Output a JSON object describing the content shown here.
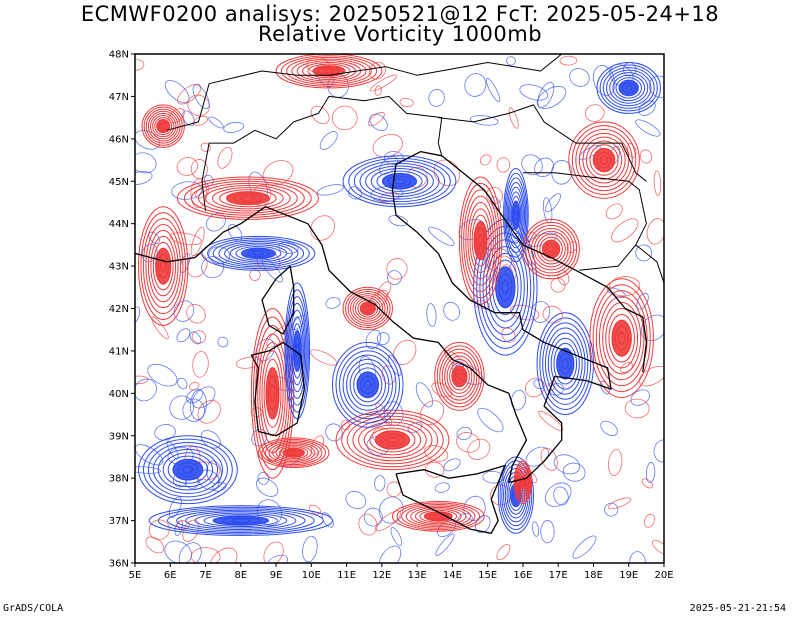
{
  "title_line1": "ECMWF0200 analisys: 20250521@12 FcT: 2025-05-24+18",
  "title_line2": "Relative Vorticity 1000mb",
  "footer_left": "GrADS/COLA",
  "footer_right": "2025-05-21-21:54",
  "colors": {
    "positive": "#f03b3b",
    "negative": "#2f4ef0",
    "coastline": "#000000",
    "frame": "#000000"
  },
  "map": {
    "lon_range": [
      5,
      20
    ],
    "lat_range": [
      36,
      48
    ],
    "lon_ticks": [
      "5E",
      "6E",
      "7E",
      "8E",
      "9E",
      "10E",
      "11E",
      "12E",
      "13E",
      "14E",
      "15E",
      "16E",
      "17E",
      "18E",
      "19E",
      "20E"
    ],
    "lat_ticks": [
      "36N",
      "37N",
      "38N",
      "39N",
      "40N",
      "41N",
      "42N",
      "43N",
      "44N",
      "45N",
      "46N",
      "47N",
      "48N"
    ],
    "fields": [
      {
        "sign": "positive",
        "lon": 5.8,
        "lat": 43.0,
        "r_lon": 0.7,
        "r_lat": 1.4
      },
      {
        "sign": "positive",
        "lon": 8.9,
        "lat": 40.0,
        "r_lon": 0.6,
        "r_lat": 2.0
      },
      {
        "sign": "negative",
        "lon": 9.6,
        "lat": 41.0,
        "r_lon": 0.35,
        "r_lat": 1.6
      },
      {
        "sign": "positive",
        "lon": 9.5,
        "lat": 38.6,
        "r_lon": 1.0,
        "r_lat": 0.35
      },
      {
        "sign": "positive",
        "lon": 12.3,
        "lat": 38.9,
        "r_lon": 1.6,
        "r_lat": 0.7
      },
      {
        "sign": "positive",
        "lon": 14.2,
        "lat": 40.4,
        "r_lon": 0.7,
        "r_lat": 0.8
      },
      {
        "sign": "positive",
        "lon": 11.6,
        "lat": 42.0,
        "r_lon": 0.7,
        "r_lat": 0.5
      },
      {
        "sign": "negative",
        "lon": 15.5,
        "lat": 42.5,
        "r_lon": 0.9,
        "r_lat": 1.6
      },
      {
        "sign": "positive",
        "lon": 14.8,
        "lat": 43.6,
        "r_lon": 0.6,
        "r_lat": 1.5
      },
      {
        "sign": "negative",
        "lon": 15.8,
        "lat": 44.2,
        "r_lon": 0.35,
        "r_lat": 1.1
      },
      {
        "sign": "positive",
        "lon": 16.8,
        "lat": 43.4,
        "r_lon": 0.8,
        "r_lat": 0.7
      },
      {
        "sign": "negative",
        "lon": 17.2,
        "lat": 40.7,
        "r_lon": 0.8,
        "r_lat": 1.2
      },
      {
        "sign": "positive",
        "lon": 18.8,
        "lat": 41.3,
        "r_lon": 0.9,
        "r_lat": 1.4
      },
      {
        "sign": "negative",
        "lon": 15.8,
        "lat": 37.6,
        "r_lon": 0.5,
        "r_lat": 0.9
      },
      {
        "sign": "positive",
        "lon": 16.0,
        "lat": 37.9,
        "r_lon": 0.25,
        "r_lat": 0.5
      },
      {
        "sign": "positive",
        "lon": 13.6,
        "lat": 37.1,
        "r_lon": 1.3,
        "r_lat": 0.35
      },
      {
        "sign": "negative",
        "lon": 8.0,
        "lat": 37.0,
        "r_lon": 2.6,
        "r_lat": 0.35
      },
      {
        "sign": "negative",
        "lon": 12.5,
        "lat": 45.0,
        "r_lon": 1.6,
        "r_lat": 0.6
      },
      {
        "sign": "positive",
        "lon": 8.2,
        "lat": 44.6,
        "r_lon": 2.0,
        "r_lat": 0.5
      },
      {
        "sign": "negative",
        "lon": 8.5,
        "lat": 43.3,
        "r_lon": 1.6,
        "r_lat": 0.4
      },
      {
        "sign": "positive",
        "lon": 10.5,
        "lat": 47.6,
        "r_lon": 1.5,
        "r_lat": 0.4
      },
      {
        "sign": "negative",
        "lon": 19.0,
        "lat": 47.2,
        "r_lon": 0.9,
        "r_lat": 0.6
      },
      {
        "sign": "positive",
        "lon": 18.3,
        "lat": 45.5,
        "r_lon": 1.0,
        "r_lat": 0.9
      },
      {
        "sign": "positive",
        "lon": 5.8,
        "lat": 46.3,
        "r_lon": 0.6,
        "r_lat": 0.5
      },
      {
        "sign": "negative",
        "lon": 11.6,
        "lat": 40.2,
        "r_lon": 1.0,
        "r_lat": 1.0
      },
      {
        "sign": "negative",
        "lon": 6.5,
        "lat": 38.2,
        "r_lon": 1.4,
        "r_lat": 0.8
      }
    ],
    "coastlines": [
      [
        [
          7.5,
          43.8
        ],
        [
          8.0,
          44.0
        ],
        [
          8.7,
          44.4
        ],
        [
          9.3,
          44.2
        ],
        [
          9.9,
          44.0
        ],
        [
          10.3,
          43.5
        ],
        [
          10.5,
          42.9
        ],
        [
          11.1,
          42.4
        ],
        [
          11.8,
          42.1
        ],
        [
          12.3,
          41.7
        ],
        [
          12.9,
          41.3
        ],
        [
          13.6,
          41.2
        ],
        [
          14.0,
          40.8
        ],
        [
          14.5,
          40.6
        ],
        [
          15.0,
          40.2
        ],
        [
          15.6,
          40.0
        ],
        [
          15.8,
          39.5
        ],
        [
          16.1,
          38.9
        ],
        [
          15.7,
          38.3
        ],
        [
          15.6,
          37.9
        ],
        [
          16.1,
          38.0
        ],
        [
          16.6,
          38.4
        ],
        [
          17.1,
          38.9
        ],
        [
          17.1,
          39.3
        ],
        [
          16.6,
          39.7
        ],
        [
          16.9,
          40.4
        ],
        [
          17.8,
          40.3
        ],
        [
          18.5,
          40.1
        ],
        [
          18.4,
          40.6
        ],
        [
          17.5,
          40.9
        ],
        [
          16.6,
          41.2
        ],
        [
          16.0,
          41.5
        ],
        [
          15.9,
          41.9
        ],
        [
          15.2,
          41.9
        ],
        [
          14.5,
          42.2
        ],
        [
          14.0,
          42.6
        ],
        [
          13.6,
          43.3
        ],
        [
          13.0,
          43.8
        ],
        [
          12.4,
          44.2
        ],
        [
          12.3,
          44.8
        ],
        [
          12.4,
          45.4
        ],
        [
          13.1,
          45.7
        ],
        [
          13.7,
          45.6
        ]
      ],
      [
        [
          12.4,
          38.1
        ],
        [
          13.2,
          38.2
        ],
        [
          13.9,
          38.0
        ],
        [
          14.7,
          38.1
        ],
        [
          15.5,
          38.3
        ],
        [
          15.1,
          37.5
        ],
        [
          15.3,
          37.0
        ],
        [
          15.1,
          36.7
        ],
        [
          14.5,
          36.8
        ],
        [
          13.6,
          37.2
        ],
        [
          12.6,
          37.6
        ],
        [
          12.4,
          38.1
        ]
      ],
      [
        [
          9.2,
          41.2
        ],
        [
          9.7,
          40.9
        ],
        [
          9.8,
          40.1
        ],
        [
          9.6,
          39.3
        ],
        [
          9.0,
          39.0
        ],
        [
          8.5,
          39.1
        ],
        [
          8.4,
          39.8
        ],
        [
          8.5,
          40.6
        ],
        [
          8.3,
          40.9
        ],
        [
          8.8,
          41.0
        ],
        [
          9.2,
          41.2
        ]
      ],
      [
        [
          9.4,
          43.0
        ],
        [
          9.5,
          42.5
        ],
        [
          9.5,
          41.9
        ],
        [
          9.2,
          41.4
        ],
        [
          8.8,
          41.6
        ],
        [
          8.6,
          42.2
        ],
        [
          9.0,
          42.7
        ],
        [
          9.4,
          43.0
        ]
      ],
      [
        [
          13.7,
          45.6
        ],
        [
          14.3,
          45.2
        ],
        [
          14.9,
          44.8
        ],
        [
          15.4,
          44.2
        ],
        [
          16.0,
          43.5
        ],
        [
          16.8,
          43.2
        ],
        [
          17.5,
          42.9
        ],
        [
          18.4,
          42.5
        ],
        [
          18.9,
          42.0
        ],
        [
          19.4,
          41.8
        ],
        [
          19.5,
          41.2
        ],
        [
          19.4,
          40.5
        ]
      ],
      [
        [
          5.0,
          43.3
        ],
        [
          5.9,
          43.1
        ],
        [
          6.7,
          43.2
        ],
        [
          7.5,
          43.8
        ]
      ]
    ],
    "borders": [
      [
        [
          7.0,
          44.3
        ],
        [
          6.9,
          45.0
        ],
        [
          7.1,
          45.9
        ],
        [
          7.8,
          45.9
        ],
        [
          8.4,
          46.2
        ],
        [
          9.0,
          46.0
        ],
        [
          9.5,
          46.4
        ],
        [
          10.2,
          46.6
        ],
        [
          10.5,
          47.0
        ],
        [
          11.5,
          46.9
        ],
        [
          12.2,
          47.0
        ],
        [
          12.7,
          46.6
        ],
        [
          13.7,
          46.5
        ],
        [
          13.6,
          45.9
        ],
        [
          13.7,
          45.6
        ]
      ],
      [
        [
          5.9,
          46.2
        ],
        [
          6.8,
          46.4
        ],
        [
          7.1,
          47.3
        ],
        [
          8.6,
          47.6
        ],
        [
          9.6,
          47.5
        ],
        [
          10.5,
          47.5
        ],
        [
          12.1,
          47.7
        ],
        [
          13.0,
          47.5
        ],
        [
          15.0,
          47.8
        ],
        [
          16.5,
          47.6
        ],
        [
          17.1,
          48.0
        ]
      ],
      [
        [
          13.6,
          46.5
        ],
        [
          14.6,
          46.4
        ],
        [
          15.6,
          46.6
        ],
        [
          16.3,
          46.8
        ],
        [
          16.6,
          46.4
        ],
        [
          17.5,
          45.9
        ],
        [
          18.8,
          45.9
        ],
        [
          19.2,
          45.2
        ],
        [
          19.5,
          45.0
        ]
      ],
      [
        [
          16.0,
          45.2
        ],
        [
          16.9,
          45.2
        ],
        [
          17.9,
          45.1
        ],
        [
          19.0,
          45.0
        ],
        [
          19.3,
          44.8
        ],
        [
          19.5,
          44.0
        ],
        [
          19.2,
          43.5
        ],
        [
          18.7,
          43.0
        ],
        [
          17.6,
          42.9
        ]
      ],
      [
        [
          19.2,
          43.5
        ],
        [
          19.8,
          43.1
        ],
        [
          20.0,
          42.6
        ]
      ]
    ]
  }
}
